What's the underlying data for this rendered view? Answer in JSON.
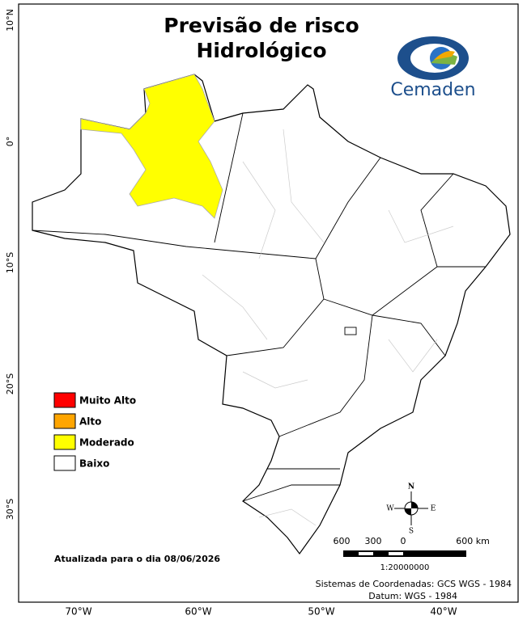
{
  "title": {
    "line1": "Previsão de risco",
    "line2": "Hidrológico"
  },
  "logo": {
    "text": "Cemaden"
  },
  "lat_labels": [
    "10°N",
    "0°",
    "10°S",
    "20°S",
    "30°S"
  ],
  "lon_labels": [
    "70°W",
    "60°W",
    "50°W",
    "40°W"
  ],
  "legend": [
    {
      "label": "Muito Alto",
      "color": "#ff0000"
    },
    {
      "label": "Alto",
      "color": "#ffa500"
    },
    {
      "label": "Moderado",
      "color": "#ffff00"
    },
    {
      "label": "Baixo",
      "color": "#ffffff"
    }
  ],
  "compass": {
    "n": "N",
    "s": "S",
    "e": "E",
    "w": "W"
  },
  "scale": {
    "labels": [
      "600",
      "300",
      "0",
      "600 km"
    ],
    "ratio": "1:20000000"
  },
  "updated": "Atualizada para o dia 08/06/2026",
  "credits": {
    "line1": "Sistemas de Coordenadas: GCS WGS - 1984",
    "line2": "Datum: WGS - 1984"
  }
}
